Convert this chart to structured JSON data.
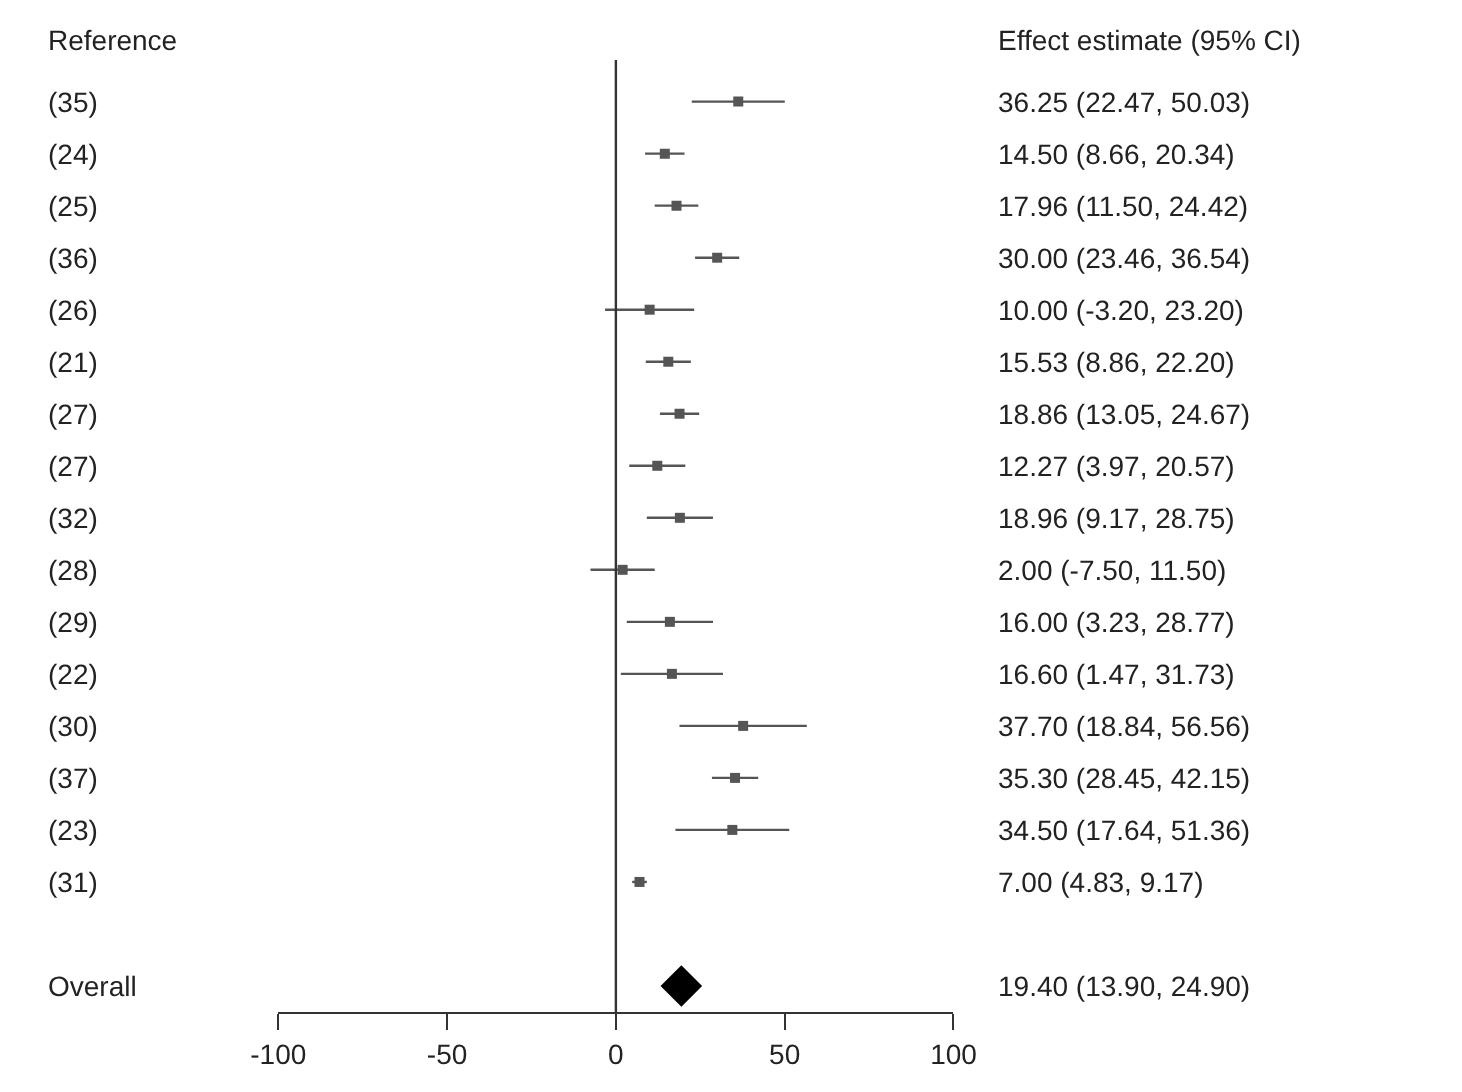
{
  "chart_data": {
    "type": "scatter",
    "orientation": "horizontal",
    "ylabel": "Reference",
    "annotations": [
      "Effect estimate (95% CI)"
    ],
    "categories": [
      "(35)",
      "(24)",
      "(25)",
      "(36)",
      "(26)",
      "(21)",
      "(27)",
      "(27)",
      "(32)",
      "(28)",
      "(29)",
      "(22)",
      "(30)",
      "(37)",
      "(23)",
      "(31)",
      null,
      "Overall"
    ],
    "series": [
      {
        "color": "#555555",
        "marker": "square",
        "values": [
          36.25,
          14.5,
          17.96,
          30.0,
          10.0,
          15.53,
          18.86,
          12.27,
          18.96,
          2.0,
          16.0,
          16.6,
          37.7,
          35.3,
          34.5,
          7.0,
          null,
          null
        ],
        "errors": [
          [
            22.47,
            50.03
          ],
          [
            8.66,
            20.34
          ],
          [
            11.5,
            24.42
          ],
          [
            23.46,
            36.54
          ],
          [
            -3.2,
            23.2
          ],
          [
            8.86,
            22.2
          ],
          [
            13.05,
            24.67
          ],
          [
            3.97,
            20.57
          ],
          [
            9.17,
            28.75
          ],
          [
            -7.5,
            11.5
          ],
          [
            3.23,
            28.77
          ],
          [
            1.47,
            31.73
          ],
          [
            18.84,
            56.56
          ],
          [
            28.45,
            42.15
          ],
          [
            17.64,
            51.36
          ],
          [
            4.83,
            9.17
          ],
          null,
          null
        ]
      },
      {
        "color": "#000000",
        "marker": "diamond",
        "values": [
          null,
          null,
          null,
          null,
          null,
          null,
          null,
          null,
          null,
          null,
          null,
          null,
          null,
          null,
          null,
          null,
          null,
          19.4
        ],
        "errors": [
          null,
          null,
          null,
          null,
          null,
          null,
          null,
          null,
          null,
          null,
          null,
          null,
          null,
          null,
          null,
          null,
          null,
          null
        ]
      }
    ],
    "value_labels": [
      "36.25 (22.47, 50.03)",
      "14.50 (8.66, 20.34)",
      "17.96 (11.50, 24.42)",
      "30.00 (23.46, 36.54)",
      "10.00 (-3.20, 23.20)",
      "15.53 (8.86, 22.20)",
      "18.86 (13.05, 24.67)",
      "12.27 (3.97, 20.57)",
      "18.96 (9.17, 28.75)",
      "2.00 (-7.50, 11.50)",
      "16.00 (3.23, 28.77)",
      "16.60 (1.47, 31.73)",
      "37.70 (18.84, 56.56)",
      "35.30 (28.45, 42.15)",
      "34.50 (17.64, 51.36)",
      "7.00 (4.83, 9.17)",
      null,
      "19.40 (13.90, 24.90)"
    ],
    "xlim": [
      -100,
      100
    ],
    "xticks": [
      -100,
      -50,
      0,
      50,
      100
    ],
    "ref_lines": [
      {
        "axis": "x",
        "value": 0,
        "color": "#333333"
      }
    ]
  }
}
